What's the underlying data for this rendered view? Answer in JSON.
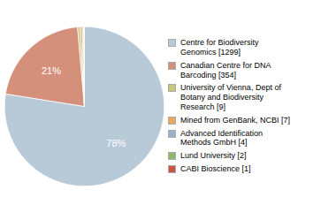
{
  "chart_data": {
    "type": "pie",
    "categories": [
      "Centre for Biodiversity\nGenomics [1299]",
      "Canadian Centre for DNA\nBarcoding [354]",
      "University of Vienna, Dept of\nBotany and Biodiversity\nResearch [9]",
      "Mined from GenBank, NCBI [7]",
      "Advanced Identification\nMethods GmbH [4]",
      "Lund University [2]",
      "CABI Bioscience [1]"
    ],
    "values": [
      77.506,
      21.122,
      0.537,
      0.418,
      0.239,
      0.119,
      0.06
    ],
    "value_labels": [
      "78%",
      "21%",
      null,
      null,
      null,
      null,
      null
    ],
    "colors": [
      "#b8c9d8",
      "#d4907a",
      "#c8c87a",
      "#e8a860",
      "#9ab0cc",
      "#8cb86a",
      "#cc5544"
    ],
    "data_labels": true,
    "legend": "right"
  }
}
